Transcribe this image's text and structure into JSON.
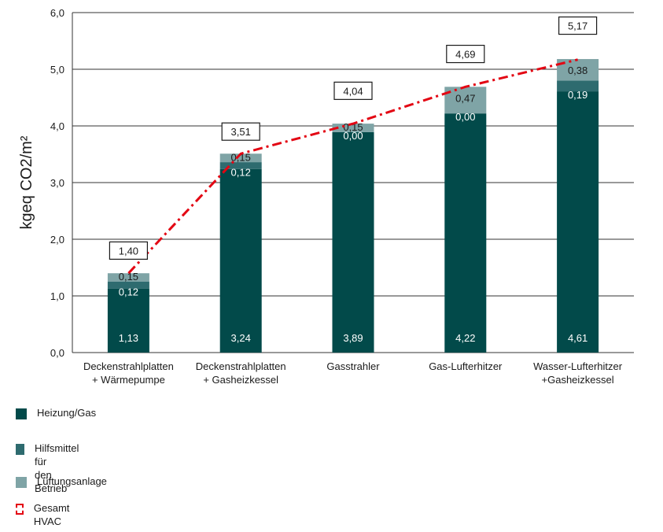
{
  "chart_data": {
    "type": "bar",
    "stacked": true,
    "ylabel": "kgeq CO2/m²",
    "ylim": [
      0,
      6
    ],
    "yticks": [
      "0,0",
      "1,0",
      "2,0",
      "3,0",
      "4,0",
      "5,0",
      "6,0"
    ],
    "grid": true,
    "categories": [
      "Deckenstrahlplatten\n+ Wärmepumpe",
      "Deckenstrahlplatten\n+ Gasheizkessel",
      "Gasstrahler",
      "Gas-Lufterhitzer",
      "Wasser-Lufterhitzer\n+Gasheizkessel"
    ],
    "series": [
      {
        "name": "Heizung/Gas",
        "color": "#024a4a",
        "values": [
          1.13,
          3.24,
          3.89,
          4.22,
          4.61
        ],
        "labels": [
          "1,13",
          "3,24",
          "3,89",
          "4,22",
          "4,61"
        ]
      },
      {
        "name": "Hilfsmittel für\nden Betrieb",
        "color": "#2e6b6f",
        "values": [
          0.12,
          0.12,
          0.0,
          0.0,
          0.19
        ],
        "labels": [
          "0,12",
          "0,12",
          "0,00",
          "0,00",
          "0,19"
        ]
      },
      {
        "name": "Lüftungsanlage",
        "color": "#7fa4a6",
        "values": [
          0.15,
          0.15,
          0.15,
          0.47,
          0.38
        ],
        "labels": [
          "0,15",
          "0,15",
          "0,15",
          "0,47",
          "0,38"
        ]
      }
    ],
    "total": {
      "name": "Gesamt HVAC",
      "color": "#e30613",
      "values": [
        1.4,
        3.51,
        4.04,
        4.69,
        5.17
      ],
      "labels": [
        "1,40",
        "3,51",
        "4,04",
        "4,69",
        "5,17"
      ]
    },
    "legend_position": "bottom-left"
  }
}
